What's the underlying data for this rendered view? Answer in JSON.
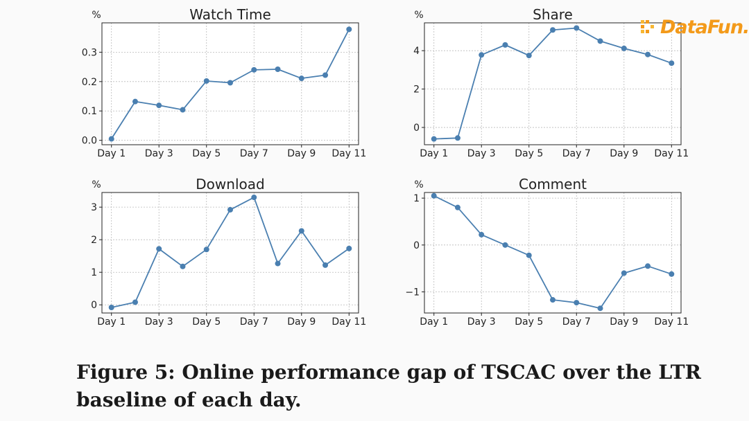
{
  "logo": {
    "text": "DataFun.",
    "color": "#f39a1a",
    "icon": "datafun-logo-icon"
  },
  "caption": "Figure 5: Online performance gap of TSCAC over the LTR baseline of each day.",
  "line_color": "#4a7fb0",
  "chart_data": [
    {
      "type": "line",
      "title": "Watch Time",
      "unit_label": "%",
      "xlabel": "",
      "ylabel": "",
      "x": [
        1,
        2,
        3,
        4,
        5,
        6,
        7,
        8,
        9,
        10,
        11
      ],
      "x_tick_values": [
        1,
        3,
        5,
        7,
        9,
        11
      ],
      "x_tick_labels": [
        "Day 1",
        "Day 3",
        "Day 5",
        "Day 7",
        "Day 9",
        "Day 11"
      ],
      "series": [
        {
          "values": [
            0.005,
            0.132,
            0.119,
            0.104,
            0.202,
            0.196,
            0.24,
            0.242,
            0.211,
            0.222,
            0.378
          ]
        }
      ],
      "ylim": [
        -0.015,
        0.4
      ],
      "y_tick_values": [
        0.0,
        0.1,
        0.2,
        0.3
      ],
      "y_tick_labels": [
        "0.0",
        "0.1",
        "0.2",
        "0.3"
      ],
      "grid": true
    },
    {
      "type": "line",
      "title": "Share",
      "unit_label": "%",
      "xlabel": "",
      "ylabel": "",
      "x": [
        1,
        2,
        3,
        4,
        5,
        6,
        7,
        8,
        9,
        10,
        11
      ],
      "x_tick_values": [
        1,
        3,
        5,
        7,
        9,
        11
      ],
      "x_tick_labels": [
        "Day 1",
        "Day 3",
        "Day 5",
        "Day 7",
        "Day 9",
        "Day 11"
      ],
      "series": [
        {
          "values": [
            -0.6,
            -0.55,
            3.78,
            4.3,
            3.75,
            5.08,
            5.18,
            4.5,
            4.12,
            3.8,
            3.35
          ]
        }
      ],
      "ylim": [
        -0.9,
        5.45
      ],
      "y_tick_values": [
        0,
        2,
        4
      ],
      "y_tick_labels": [
        "0",
        "2",
        "4"
      ],
      "grid": true
    },
    {
      "type": "line",
      "title": "Download",
      "unit_label": "%",
      "xlabel": "",
      "ylabel": "",
      "x": [
        1,
        2,
        3,
        4,
        5,
        6,
        7,
        8,
        9,
        10,
        11
      ],
      "x_tick_values": [
        1,
        3,
        5,
        7,
        9,
        11
      ],
      "x_tick_labels": [
        "Day 1",
        "Day 3",
        "Day 5",
        "Day 7",
        "Day 9",
        "Day 11"
      ],
      "series": [
        {
          "values": [
            -0.08,
            0.08,
            1.72,
            1.18,
            1.7,
            2.92,
            3.3,
            1.27,
            2.27,
            1.22,
            1.73
          ]
        }
      ],
      "ylim": [
        -0.25,
        3.45
      ],
      "y_tick_values": [
        0,
        1,
        2,
        3
      ],
      "y_tick_labels": [
        "0",
        "1",
        "2",
        "3"
      ],
      "grid": true
    },
    {
      "type": "line",
      "title": "Comment",
      "unit_label": "%",
      "xlabel": "",
      "ylabel": "",
      "x": [
        1,
        2,
        3,
        4,
        5,
        6,
        7,
        8,
        9,
        10,
        11
      ],
      "x_tick_values": [
        1,
        3,
        5,
        7,
        9,
        11
      ],
      "x_tick_labels": [
        "Day 1",
        "Day 3",
        "Day 5",
        "Day 7",
        "Day 9",
        "Day 11"
      ],
      "series": [
        {
          "values": [
            1.05,
            0.8,
            0.22,
            0.0,
            -0.22,
            -1.17,
            -1.23,
            -1.35,
            -0.6,
            -0.45,
            -0.62
          ]
        }
      ],
      "ylim": [
        -1.45,
        1.12
      ],
      "y_tick_values": [
        1,
        0,
        -1
      ],
      "y_tick_labels": [
        "1",
        "0",
        "−1"
      ],
      "grid": true
    }
  ]
}
